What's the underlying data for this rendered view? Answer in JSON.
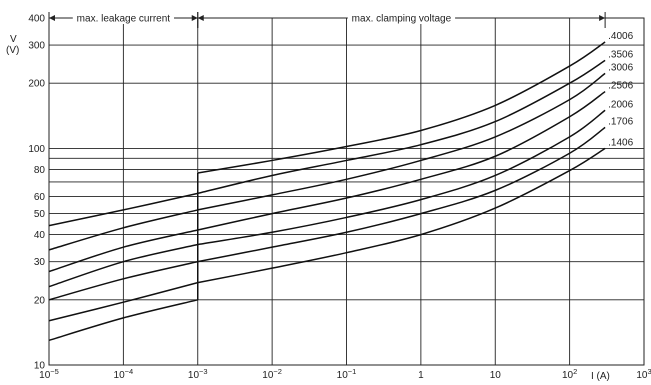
{
  "chart_data": {
    "type": "line",
    "x_scale": "log",
    "y_scale": "log",
    "xlim": [
      1e-05,
      1000
    ],
    "ylim": [
      10,
      400
    ],
    "xlabel": "I (A)",
    "ylabel_top": "V",
    "ylabel_bottom": "(V)",
    "x_tick_labels": [
      {
        "base": "10",
        "exp": "−5"
      },
      {
        "base": "10",
        "exp": "−4"
      },
      {
        "base": "10",
        "exp": "−3"
      },
      {
        "base": "10",
        "exp": "−2"
      },
      {
        "base": "10",
        "exp": "−1"
      },
      {
        "base": "1",
        "exp": ""
      },
      {
        "base": "10",
        "exp": ""
      },
      {
        "base": "10",
        "exp": "2"
      },
      {
        "base": "10",
        "exp": "3"
      }
    ],
    "y_ticks": [
      10,
      20,
      30,
      40,
      50,
      60,
      80,
      100,
      200,
      300,
      400
    ],
    "y_gridlines": [
      20,
      30,
      40,
      50,
      60,
      70,
      80,
      90,
      100,
      200,
      300
    ],
    "regions": [
      {
        "label": "max. leakage current",
        "from": 1e-05,
        "to": 0.001
      },
      {
        "label": "max. clamping voltage",
        "from": 0.001,
        "to": 300
      }
    ],
    "series": [
      {
        "name": ".4006",
        "leakage": [
          [
            1e-05,
            44
          ],
          [
            0.0001,
            52
          ],
          [
            0.001,
            62
          ]
        ],
        "clamp": [
          [
            0.001,
            77
          ],
          [
            0.01,
            88
          ],
          [
            0.1,
            102
          ],
          [
            1,
            121
          ],
          [
            10,
            158
          ],
          [
            100,
            240
          ],
          [
            300,
            310
          ]
        ]
      },
      {
        "name": ".3506",
        "leakage": [
          [
            1e-05,
            34
          ],
          [
            0.0001,
            43
          ],
          [
            0.001,
            52
          ]
        ],
        "clamp": [
          [
            0.001,
            62
          ],
          [
            0.01,
            75
          ],
          [
            0.1,
            88
          ],
          [
            1,
            104
          ],
          [
            10,
            133
          ],
          [
            100,
            200
          ],
          [
            300,
            255
          ]
        ]
      },
      {
        "name": ".3006",
        "leakage": [
          [
            1e-05,
            27
          ],
          [
            0.0001,
            35
          ],
          [
            0.001,
            42
          ]
        ],
        "clamp": [
          [
            0.001,
            52
          ],
          [
            0.01,
            61
          ],
          [
            0.1,
            72
          ],
          [
            1,
            88
          ],
          [
            10,
            113
          ],
          [
            100,
            168
          ],
          [
            300,
            222
          ]
        ]
      },
      {
        "name": ".2506",
        "leakage": [
          [
            1e-05,
            23
          ],
          [
            0.0001,
            30
          ],
          [
            0.001,
            36
          ]
        ],
        "clamp": [
          [
            0.001,
            42
          ],
          [
            0.01,
            50
          ],
          [
            0.1,
            59
          ],
          [
            1,
            72
          ],
          [
            10,
            92
          ],
          [
            100,
            140
          ],
          [
            300,
            183
          ]
        ]
      },
      {
        "name": ".2006",
        "leakage": [
          [
            1e-05,
            20
          ],
          [
            0.0001,
            25
          ],
          [
            0.001,
            30
          ]
        ],
        "clamp": [
          [
            0.001,
            36
          ],
          [
            0.01,
            41
          ],
          [
            0.1,
            48
          ],
          [
            1,
            58
          ],
          [
            10,
            75
          ],
          [
            100,
            113
          ],
          [
            300,
            150
          ]
        ]
      },
      {
        "name": ".1706",
        "leakage": [
          [
            1e-05,
            16
          ],
          [
            0.0001,
            19.5
          ],
          [
            0.001,
            24
          ]
        ],
        "clamp": [
          [
            0.001,
            30
          ],
          [
            0.01,
            35
          ],
          [
            0.1,
            41
          ],
          [
            1,
            50
          ],
          [
            10,
            64
          ],
          [
            100,
            95
          ],
          [
            300,
            125
          ]
        ]
      },
      {
        "name": ".1406",
        "leakage": [
          [
            1e-05,
            13
          ],
          [
            0.0001,
            16.5
          ],
          [
            0.001,
            20
          ]
        ],
        "clamp": [
          [
            0.001,
            24
          ],
          [
            0.01,
            28
          ],
          [
            0.1,
            33
          ],
          [
            1,
            40
          ],
          [
            10,
            53
          ],
          [
            100,
            79
          ],
          [
            300,
            100
          ]
        ]
      }
    ]
  }
}
